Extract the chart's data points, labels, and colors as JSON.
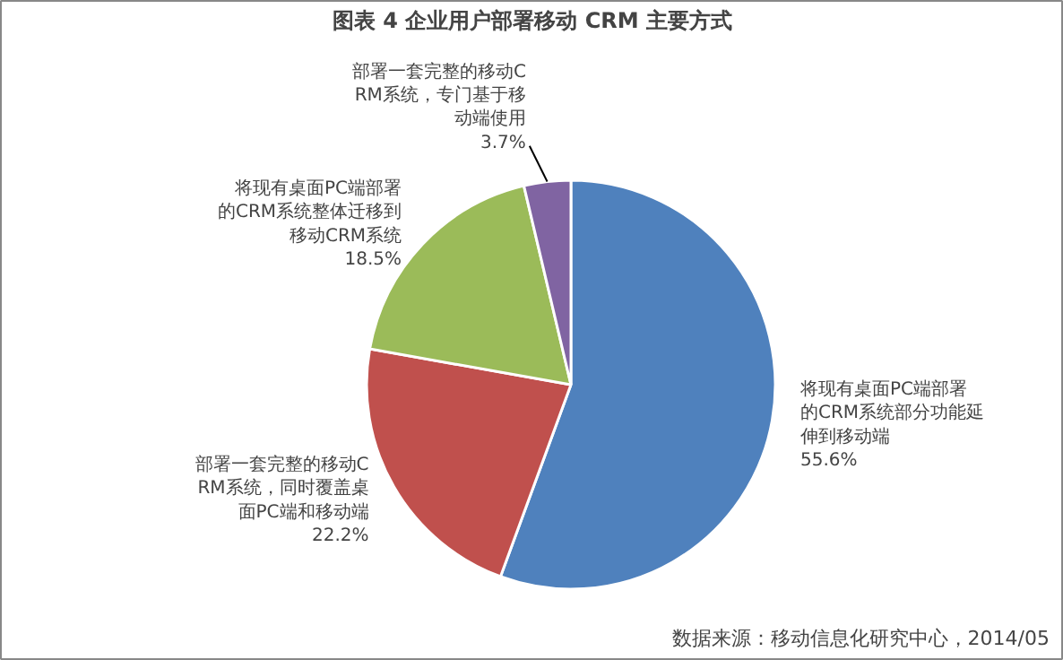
{
  "chart_data": {
    "type": "pie",
    "title": "图表 4 企业用户部署移动 CRM 主要方式",
    "categories": [
      "将现有桌面PC端部署的CRM系统部分功能延伸到移动端",
      "部署一套完整的移动CRM系统，同时覆盖桌面PC端和移动端",
      "将现有桌面PC端部署的CRM系统整体迁移到移动CRM系统",
      "部署一套完整的移动CRM系统，专门基于移动端使用"
    ],
    "values": [
      55.6,
      22.2,
      18.5,
      3.7
    ],
    "colors": [
      "#4f81bd",
      "#c0504d",
      "#9bbb59",
      "#8064a2"
    ],
    "value_labels": [
      "55.6%",
      "22.2%",
      "18.5%",
      "3.7%"
    ],
    "legend": false,
    "annotations": [
      "数据来源：移动信息化研究中心，2014/05"
    ]
  }
}
